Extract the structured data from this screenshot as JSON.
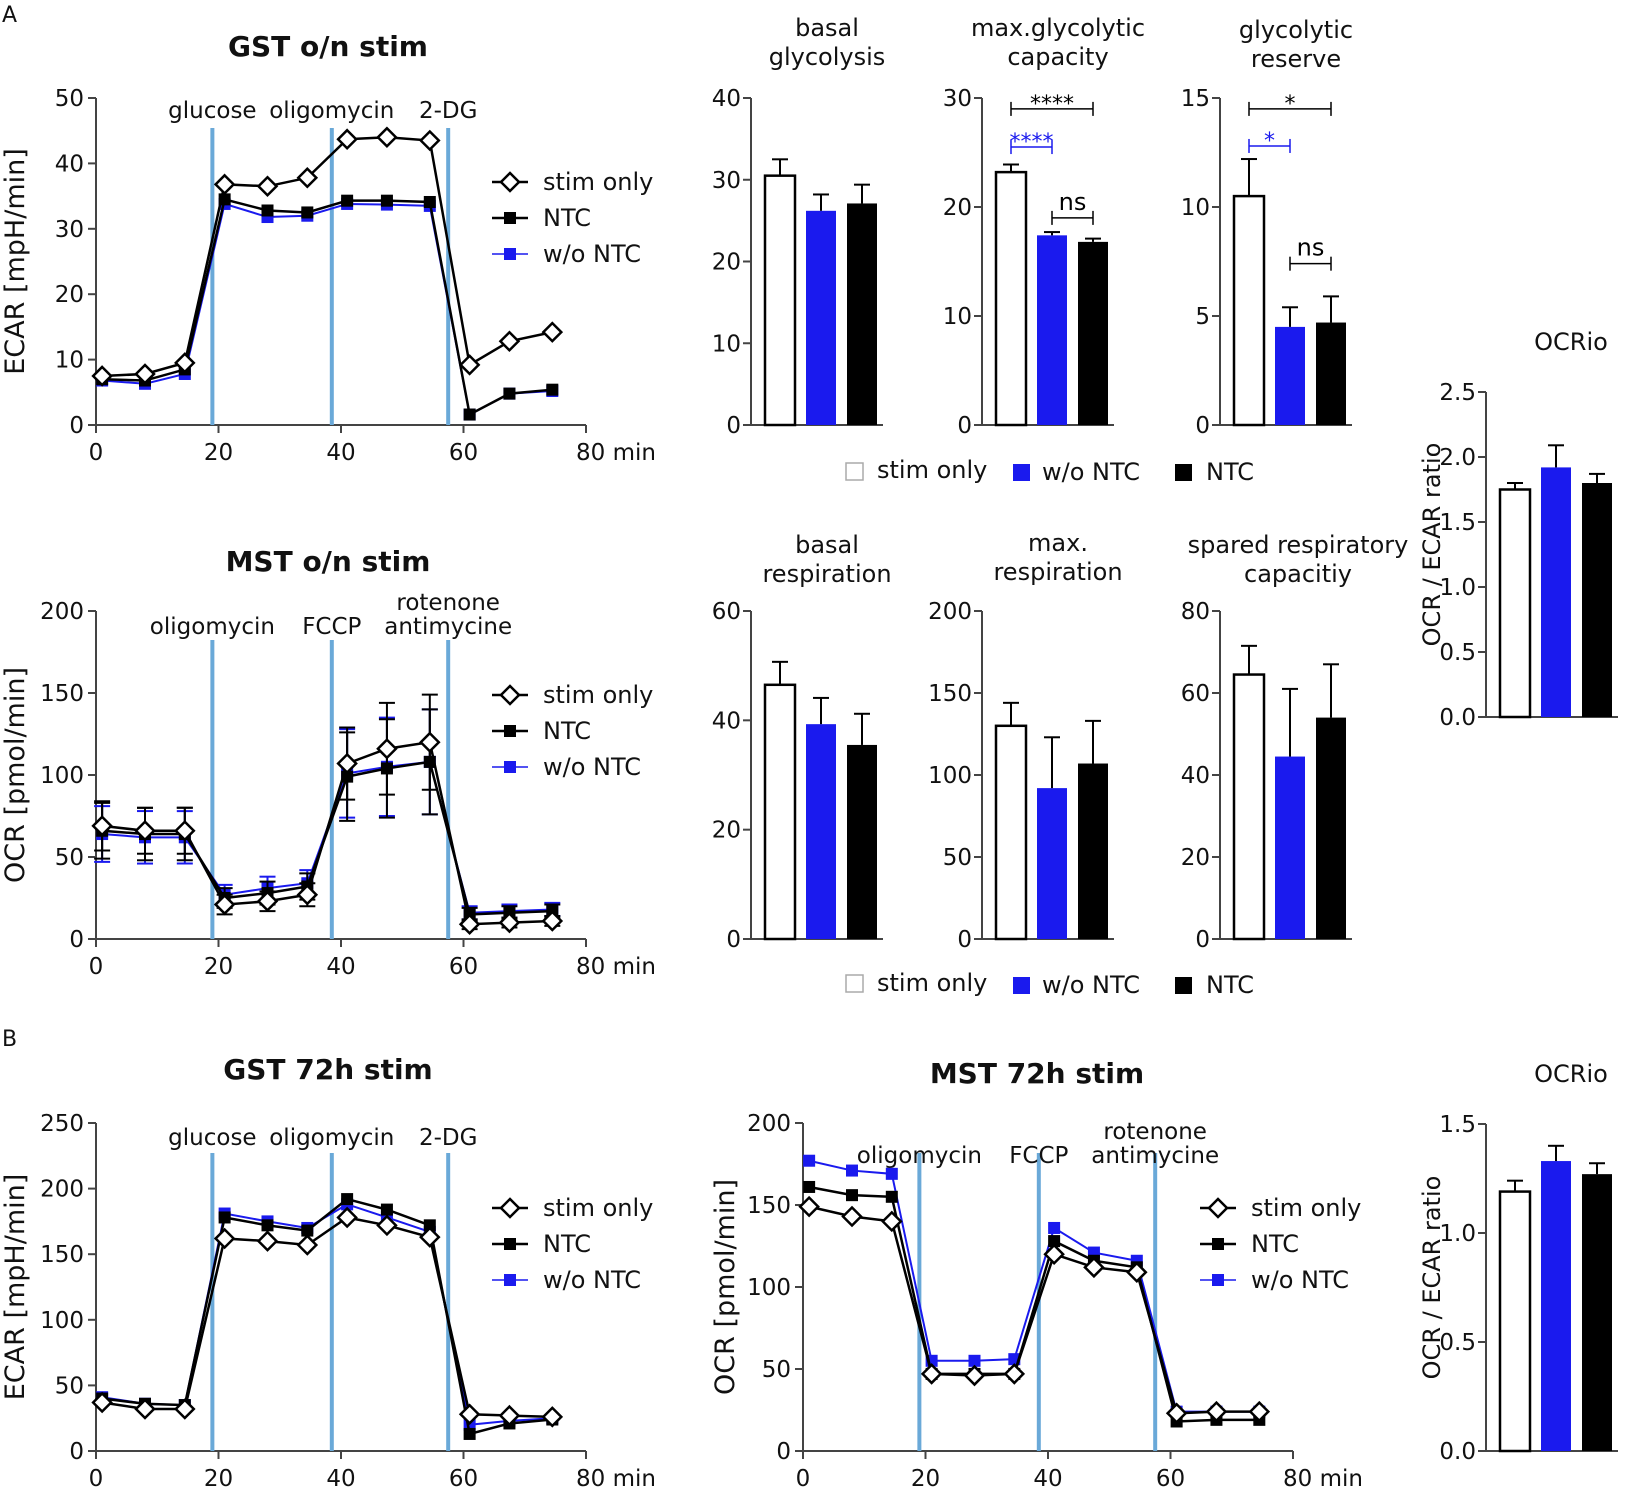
{
  "colors": {
    "stim_only": "#ffffff",
    "w_o_ntc": "#1a1aee",
    "ntc": "#000000",
    "injection": "#6aa9d8",
    "axis": "#444444"
  },
  "panel_labels": {
    "a": "A",
    "b": "B"
  },
  "legend_bottom": {
    "stim_only": "stim only",
    "w_o_ntc": "w/o NTC",
    "ntc": "NTC"
  },
  "chart_data": [
    {
      "id": "gst_on",
      "type": "line",
      "title": "GST o/n stim",
      "ylabel": "ECAR [mpH/min]",
      "xlabel": "min",
      "ylim": [
        0,
        50
      ],
      "yticks": [
        0,
        10,
        20,
        30,
        40,
        50
      ],
      "xlim": [
        0,
        80
      ],
      "xticks": [
        0,
        20,
        40,
        60,
        80
      ],
      "last_tick_label": "80 min",
      "injections": [
        {
          "x": 19,
          "label": "glucose"
        },
        {
          "x": 38.5,
          "label": "oligomycin"
        },
        {
          "x": 57.5,
          "label": "2-DG"
        }
      ],
      "legend": [
        "stim only",
        "NTC",
        "w/o NTC"
      ],
      "x": [
        1,
        8,
        14.5,
        21,
        28,
        34.5,
        41,
        47.5,
        54.5,
        61,
        67.5,
        74.5
      ],
      "series": [
        {
          "name": "stim only",
          "marker": "diamond",
          "values": [
            7.5,
            7.8,
            9.5,
            36.8,
            36.5,
            37.8,
            43.7,
            44,
            43.5,
            9.2,
            12.8,
            14.2
          ]
        },
        {
          "name": "NTC",
          "marker": "square",
          "values": [
            7,
            6.8,
            8.5,
            34.5,
            32.8,
            32.5,
            34.3,
            34.3,
            34.1,
            1.6,
            4.8,
            5.4
          ]
        },
        {
          "name": "w/o NTC",
          "marker": "square",
          "values": [
            6.8,
            6.3,
            7.8,
            33.8,
            31.8,
            32,
            33.8,
            33.7,
            33.5,
            1.6,
            4.8,
            5.2
          ]
        }
      ]
    },
    {
      "id": "mst_on",
      "type": "line",
      "title": "MST o/n stim",
      "ylabel": "OCR [pmol/min]",
      "xlabel": "min",
      "ylim": [
        0,
        200
      ],
      "yticks": [
        0,
        50,
        100,
        150,
        200
      ],
      "xlim": [
        0,
        80
      ],
      "xticks": [
        0,
        20,
        40,
        60,
        80
      ],
      "last_tick_label": "80 min",
      "injections": [
        {
          "x": 19,
          "label": "oligomycin"
        },
        {
          "x": 38.5,
          "label": "FCCP"
        },
        {
          "x": 57.5,
          "label": "rotenone antimycine"
        }
      ],
      "legend": [
        "stim only",
        "NTC",
        "w/o NTC"
      ],
      "x": [
        1,
        8,
        14.5,
        21,
        28,
        34.5,
        41,
        47.5,
        54.5,
        61,
        67.5,
        74.5
      ],
      "series": [
        {
          "name": "stim only",
          "marker": "diamond",
          "values": [
            69,
            66,
            66,
            21,
            23,
            27,
            107,
            116,
            120,
            9,
            10,
            11
          ],
          "err": [
            15,
            14,
            14,
            6,
            6,
            7,
            22,
            28,
            29,
            3,
            3,
            3
          ]
        },
        {
          "name": "NTC",
          "marker": "square",
          "values": [
            66,
            64,
            64,
            25,
            28,
            32,
            99,
            104,
            108,
            15,
            16,
            17
          ],
          "err": [
            17,
            16,
            16,
            6,
            7,
            8,
            27,
            30,
            32,
            4,
            4,
            4
          ]
        },
        {
          "name": "w/o NTC",
          "marker": "square",
          "values": [
            64,
            62,
            62,
            27,
            31,
            34,
            101,
            105,
            108,
            16,
            17,
            18
          ],
          "err": [
            17,
            16,
            16,
            6,
            7,
            8,
            27,
            30,
            32,
            4,
            4,
            4
          ]
        }
      ]
    },
    {
      "id": "basal_glyc",
      "type": "bar",
      "title": "basal glycolysis",
      "categories": [
        "stim only",
        "w/o NTC",
        "NTC"
      ],
      "values": [
        30.5,
        26.2,
        27.1
      ],
      "err": [
        2,
        2,
        2.3
      ],
      "ylim": [
        0,
        40
      ],
      "yticks": [
        0,
        10,
        20,
        30,
        40
      ],
      "significance": []
    },
    {
      "id": "max_glyc",
      "type": "bar",
      "title": "max.glycolytic capacity",
      "categories": [
        "stim only",
        "w/o NTC",
        "NTC"
      ],
      "values": [
        23.2,
        17.4,
        16.8
      ],
      "err": [
        0.7,
        0.3,
        0.3
      ],
      "ylim": [
        0,
        30
      ],
      "yticks": [
        0,
        10,
        20,
        30
      ],
      "significance": [
        {
          "from": 0,
          "to": 2,
          "label": "****",
          "color": "black",
          "y": 29
        },
        {
          "from": 0,
          "to": 1,
          "label": "****",
          "color": "blue",
          "y": 25.5
        },
        {
          "from": 1,
          "to": 2,
          "label": "ns",
          "color": "black",
          "y": 19
        }
      ]
    },
    {
      "id": "glyc_reserve",
      "type": "bar",
      "title": "glycolytic reserve",
      "categories": [
        "stim only",
        "w/o NTC",
        "NTC"
      ],
      "values": [
        10.5,
        4.5,
        4.7
      ],
      "err": [
        1.7,
        0.9,
        1.2
      ],
      "ylim": [
        0,
        15
      ],
      "yticks": [
        0,
        5,
        10,
        15
      ],
      "significance": [
        {
          "from": 0,
          "to": 2,
          "label": "*",
          "color": "black",
          "y": 14.5
        },
        {
          "from": 0,
          "to": 1,
          "label": "*",
          "color": "blue",
          "y": 12.8
        },
        {
          "from": 1,
          "to": 2,
          "label": "ns",
          "color": "black",
          "y": 7.4
        }
      ]
    },
    {
      "id": "ocrio_1",
      "type": "bar",
      "title": "OCRio",
      "ylabel": "OCR / ECAR ratio",
      "categories": [
        "stim only",
        "w/o NTC",
        "NTC"
      ],
      "values": [
        1.75,
        1.92,
        1.8
      ],
      "err": [
        0.05,
        0.17,
        0.07
      ],
      "ylim": [
        0,
        2.5
      ],
      "yticks": [
        0,
        0.5,
        1,
        1.5,
        2,
        2.5
      ],
      "decimals": 1,
      "significance": []
    },
    {
      "id": "basal_resp",
      "type": "bar",
      "title": "basal respiration",
      "categories": [
        "stim only",
        "w/o NTC",
        "NTC"
      ],
      "values": [
        46.5,
        39.3,
        35.5
      ],
      "err": [
        4.2,
        4.8,
        5.7
      ],
      "ylim": [
        0,
        60
      ],
      "yticks": [
        0,
        20,
        40,
        60
      ],
      "significance": []
    },
    {
      "id": "max_resp",
      "type": "bar",
      "title": "max. respiration",
      "categories": [
        "stim only",
        "w/o NTC",
        "NTC"
      ],
      "values": [
        130,
        92,
        107
      ],
      "err": [
        14,
        31,
        26
      ],
      "ylim": [
        0,
        200
      ],
      "yticks": [
        0,
        50,
        100,
        150,
        200
      ],
      "significance": []
    },
    {
      "id": "spared_resp",
      "type": "bar",
      "title": "spared respiratory capacitiy",
      "categories": [
        "stim only",
        "w/o NTC",
        "NTC"
      ],
      "values": [
        64.5,
        44.5,
        54
      ],
      "err": [
        7,
        16.5,
        13
      ],
      "ylim": [
        0,
        80
      ],
      "yticks": [
        0,
        20,
        40,
        60,
        80
      ],
      "significance": []
    },
    {
      "id": "gst_72",
      "type": "line",
      "title": "GST 72h stim",
      "ylabel": "ECAR [mpH/min]",
      "xlabel": "min",
      "ylim": [
        0,
        250
      ],
      "yticks": [
        0,
        50,
        100,
        150,
        200,
        250
      ],
      "xlim": [
        0,
        80
      ],
      "xticks": [
        0,
        20,
        40,
        60,
        80
      ],
      "last_tick_label": "80 min",
      "injections": [
        {
          "x": 19,
          "label": "glucose"
        },
        {
          "x": 38.5,
          "label": "oligomycin"
        },
        {
          "x": 57.5,
          "label": "2-DG"
        }
      ],
      "legend": [
        "stim only",
        "NTC",
        "w/o NTC"
      ],
      "x": [
        1,
        8,
        14.5,
        21,
        28,
        34.5,
        41,
        47.5,
        54.5,
        61,
        67.5,
        74.5
      ],
      "series": [
        {
          "name": "stim only",
          "marker": "diamond",
          "values": [
            37,
            32,
            32,
            162,
            160,
            157,
            178,
            172,
            163,
            28,
            27,
            26
          ]
        },
        {
          "name": "NTC",
          "marker": "square",
          "values": [
            40,
            36,
            35,
            178,
            172,
            168,
            192,
            184,
            172,
            13,
            21,
            24
          ]
        },
        {
          "name": "w/o NTC",
          "marker": "square",
          "values": [
            41,
            36,
            35,
            181,
            175,
            170,
            188,
            178,
            167,
            20,
            23,
            25
          ]
        }
      ]
    },
    {
      "id": "mst_72",
      "type": "line",
      "title": "MST 72h stim",
      "ylabel": "OCR [pmol/min]",
      "xlabel": "min",
      "ylim": [
        0,
        200
      ],
      "yticks": [
        0,
        50,
        100,
        150,
        200
      ],
      "xlim": [
        0,
        80
      ],
      "xticks": [
        0,
        20,
        40,
        60,
        80
      ],
      "last_tick_label": "80 min",
      "injections": [
        {
          "x": 19,
          "label": "oligomycin"
        },
        {
          "x": 38.5,
          "label": "FCCP"
        },
        {
          "x": 57.5,
          "label": "rotenone antimycine"
        }
      ],
      "legend": [
        "stim only",
        "NTC",
        "w/o NTC"
      ],
      "x": [
        1,
        8,
        14.5,
        21,
        28,
        34.5,
        41,
        47.5,
        54.5,
        61,
        67.5,
        74.5
      ],
      "series": [
        {
          "name": "stim only",
          "marker": "diamond",
          "values": [
            149,
            143,
            140,
            47,
            46,
            47,
            120,
            112,
            109,
            23,
            24,
            24
          ]
        },
        {
          "name": "NTC",
          "marker": "square",
          "values": [
            161,
            156,
            155,
            47,
            47,
            47,
            128,
            116,
            112,
            18,
            19,
            19
          ]
        },
        {
          "name": "w/o NTC",
          "marker": "square",
          "values": [
            177,
            171,
            169,
            55,
            55,
            56,
            136,
            121,
            116,
            24,
            24,
            24
          ]
        }
      ]
    },
    {
      "id": "ocrio_2",
      "type": "bar",
      "title": "OCRio",
      "ylabel": "OCR / ECAR ratio",
      "categories": [
        "stim only",
        "w/o NTC",
        "NTC"
      ],
      "values": [
        1.19,
        1.33,
        1.27
      ],
      "err": [
        0.05,
        0.07,
        0.05
      ],
      "ylim": [
        0,
        1.5
      ],
      "yticks": [
        0,
        0.5,
        1,
        1.5
      ],
      "decimals": 1,
      "significance": []
    }
  ]
}
